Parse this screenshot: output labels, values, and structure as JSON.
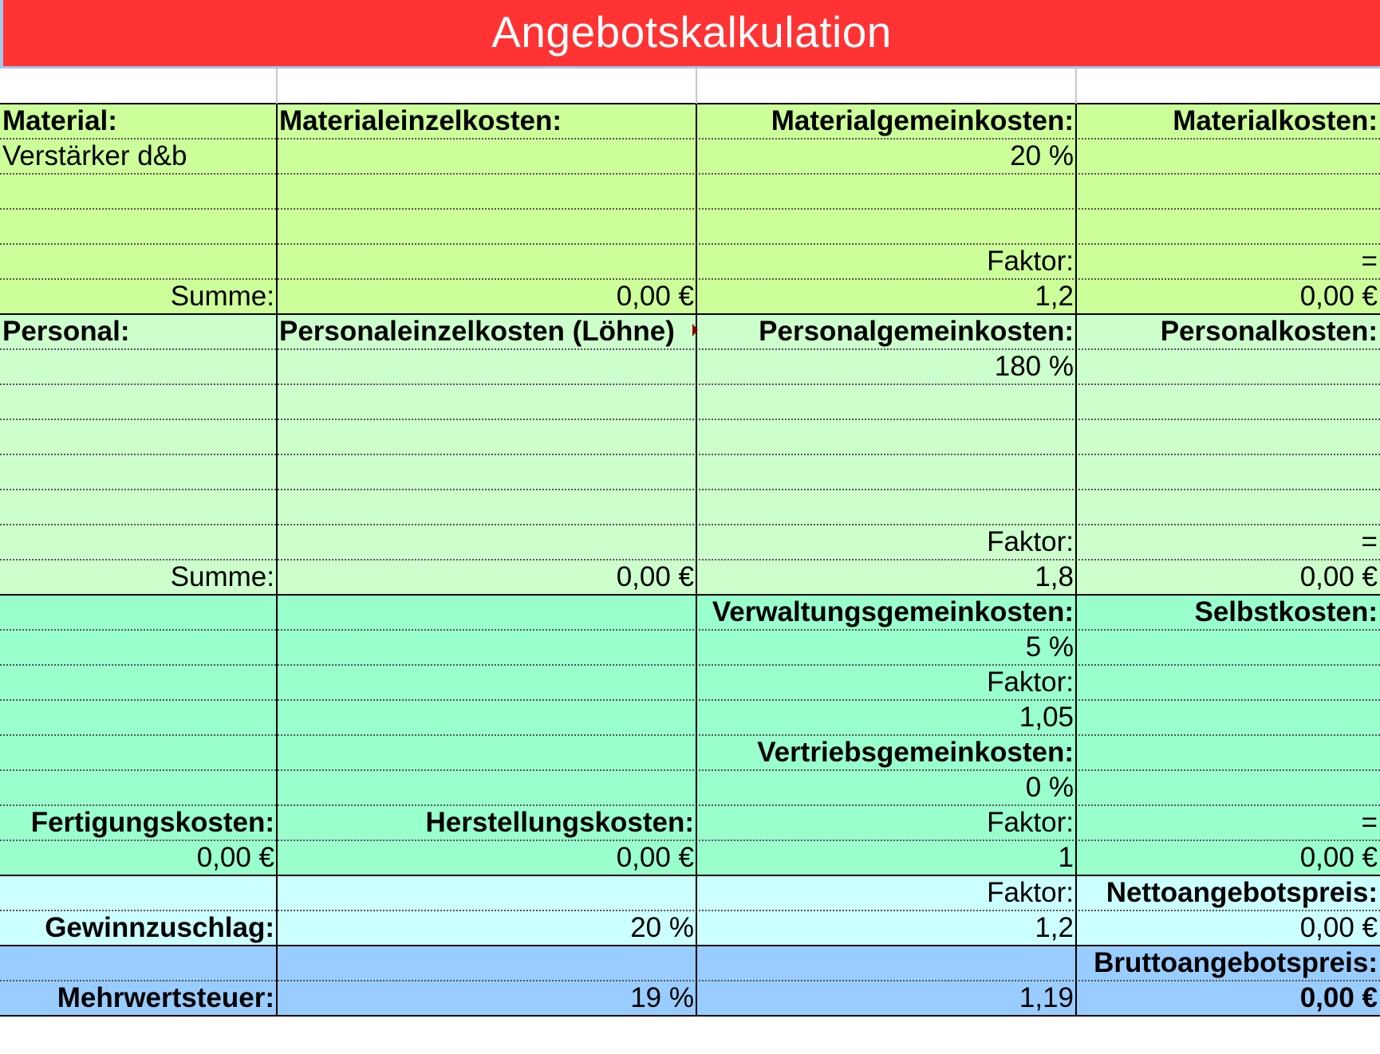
{
  "title": "Angebotskalkulation",
  "colors": {
    "title_bar": "#ff3333",
    "material": "#ccff99",
    "personal": "#ccffcc",
    "overhead": "#99ffcc",
    "profit": "#ccffff",
    "vat": "#99ccff"
  },
  "material": {
    "header_material": "Material:",
    "header_einzelkosten": "Materialeinzelkosten:",
    "header_gemeinkosten": "Materialgemeinkosten:",
    "header_kosten": "Materialkosten:",
    "item_1": "Verstärker d&b",
    "rate": "20 %",
    "factor_label": "Faktor:",
    "equals": "=",
    "sum_label": "Summe:",
    "sum_einzelkosten": "0,00 €",
    "factor_value": "1,2",
    "total": "0,00 €"
  },
  "personal": {
    "header_personal": "Personal:",
    "header_einzelkosten": "Personaleinzelkosten (Löhne)",
    "header_gemeinkosten": "Personalgemeinkosten:",
    "header_kosten": "Personalkosten:",
    "rate": "180 %",
    "factor_label": "Faktor:",
    "equals": "=",
    "sum_label": "Summe:",
    "sum_einzelkosten": "0,00 €",
    "factor_value": "1,8",
    "total": "0,00 €"
  },
  "overhead": {
    "verwaltung_label": "Verwaltungsgemeinkosten:",
    "selbstkosten_label": "Selbstkosten:",
    "verwaltung_rate": "5 %",
    "factor_label_1": "Faktor:",
    "verwaltung_factor": "1,05",
    "vertrieb_label": "Vertriebsgemeinkosten:",
    "vertrieb_rate": "0 %",
    "fertigung_label": "Fertigungskosten:",
    "herstellung_label": "Herstellungskosten:",
    "factor_label_2": "Faktor:",
    "equals": "=",
    "fertigung_value": "0,00 €",
    "herstellung_value": "0,00 €",
    "vertrieb_factor": "1",
    "selbstkosten_value": "0,00 €"
  },
  "profit": {
    "factor_label": "Faktor:",
    "netto_label": "Nettoangebotspreis:",
    "gewinn_label": "Gewinnzuschlag:",
    "gewinn_rate": "20 %",
    "gewinn_factor": "1,2",
    "netto_value": "0,00 €"
  },
  "vat": {
    "brutto_label": "Bruttoangebotspreis:",
    "mwst_label": "Mehrwertsteuer:",
    "mwst_rate": "19 %",
    "mwst_factor": "1,19",
    "brutto_value": "0,00 €"
  }
}
